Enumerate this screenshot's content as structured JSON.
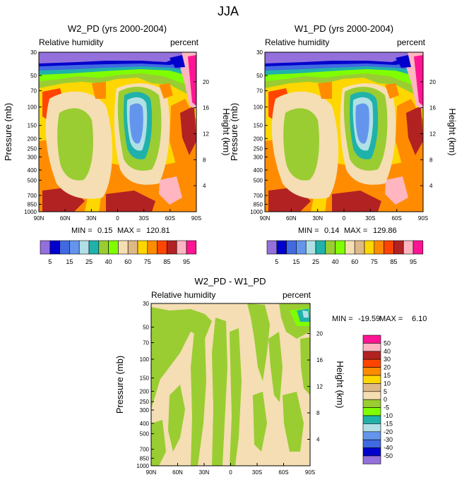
{
  "figure_title": "JJA",
  "colors": {
    "abs": [
      "#9370db",
      "#0000cd",
      "#4169e1",
      "#6495ed",
      "#b0e0e6",
      "#20b2aa",
      "#9acd32",
      "#7fff00",
      "#f5deb3",
      "#deb887",
      "#ffd700",
      "#ff8c00",
      "#ff4500",
      "#b22222",
      "#ffb6c1",
      "#ff1493"
    ],
    "diff": [
      "#9370db",
      "#0000cd",
      "#4169e1",
      "#6495ed",
      "#b0e0e6",
      "#20b2aa",
      "#7fff00",
      "#9acd32",
      "#f5deb3",
      "#deb887",
      "#ffd700",
      "#ff8c00",
      "#ff4500",
      "#b22222",
      "#ffb6c1",
      "#ff1493"
    ]
  },
  "chart_data": [
    {
      "type": "heatmap",
      "title": "W2_PD (yrs 2000-2004)",
      "left_string": "Relative humidity",
      "right_string": "percent",
      "ylabel": "Pressure (mb)",
      "ylabel_right": "Height (km)",
      "x_ticks": [
        "90N",
        "60N",
        "30N",
        "0",
        "30S",
        "60S",
        "90S"
      ],
      "x_values": [
        90,
        60,
        30,
        0,
        -30,
        -60,
        -90
      ],
      "y_ticks": [
        "30",
        "50",
        "70",
        "100",
        "150",
        "200",
        "250",
        "300",
        "400",
        "500",
        "700",
        "850",
        "1000"
      ],
      "y_values": [
        30,
        50,
        70,
        100,
        150,
        200,
        250,
        300,
        400,
        500,
        700,
        850,
        1000
      ],
      "height_ticks": [
        "20",
        "16",
        "12",
        "8",
        "4"
      ],
      "height_values": [
        20,
        16,
        12,
        8,
        4
      ],
      "min_label": "MIN =",
      "min_value": "0.15",
      "max_label": "MAX =",
      "max_value": "120.81",
      "colorbar_labels": [
        "5",
        "15",
        "25",
        "40",
        "60",
        "75",
        "85",
        "95"
      ]
    },
    {
      "type": "heatmap",
      "title": "W1_PD (yrs 2000-2004)",
      "left_string": "Relative humidity",
      "right_string": "percent",
      "ylabel": "Pressure (mb)",
      "ylabel_right": "Height (km)",
      "x_ticks": [
        "90N",
        "60N",
        "30N",
        "0",
        "30S",
        "60S",
        "90S"
      ],
      "x_values": [
        90,
        60,
        30,
        0,
        -30,
        -60,
        -90
      ],
      "y_ticks": [
        "30",
        "50",
        "70",
        "100",
        "150",
        "200",
        "250",
        "300",
        "400",
        "500",
        "700",
        "850",
        "1000"
      ],
      "y_values": [
        30,
        50,
        70,
        100,
        150,
        200,
        250,
        300,
        400,
        500,
        700,
        850,
        1000
      ],
      "height_ticks": [
        "20",
        "16",
        "12",
        "8",
        "4"
      ],
      "height_values": [
        20,
        16,
        12,
        8,
        4
      ],
      "min_label": "MIN =",
      "min_value": "0.14",
      "max_label": "MAX =",
      "max_value": "129.86",
      "colorbar_labels": [
        "5",
        "15",
        "25",
        "40",
        "60",
        "75",
        "85",
        "95"
      ]
    },
    {
      "type": "heatmap",
      "title": "W2_PD - W1_PD",
      "left_string": "Relative humidity",
      "right_string": "percent",
      "ylabel": "Pressure (mb)",
      "ylabel_right": "Height (km)",
      "x_ticks": [
        "90N",
        "60N",
        "30N",
        "0",
        "30S",
        "60S",
        "90S"
      ],
      "x_values": [
        90,
        60,
        30,
        0,
        -30,
        -60,
        -90
      ],
      "y_ticks": [
        "30",
        "50",
        "70",
        "100",
        "150",
        "200",
        "250",
        "300",
        "400",
        "500",
        "700",
        "850",
        "1000"
      ],
      "y_values": [
        30,
        50,
        70,
        100,
        150,
        200,
        250,
        300,
        400,
        500,
        700,
        850,
        1000
      ],
      "height_ticks": [
        "20",
        "16",
        "12",
        "8",
        "4"
      ],
      "height_values": [
        20,
        16,
        12,
        8,
        4
      ],
      "min_label": "MIN =",
      "min_value": "-19.59",
      "max_label": "MAX =",
      "max_value": "6.10",
      "colorbar_labels": [
        "50",
        "40",
        "30",
        "20",
        "15",
        "10",
        "5",
        "0",
        "-5",
        "-10",
        "-15",
        "-20",
        "-30",
        "-40",
        "-50"
      ]
    }
  ]
}
